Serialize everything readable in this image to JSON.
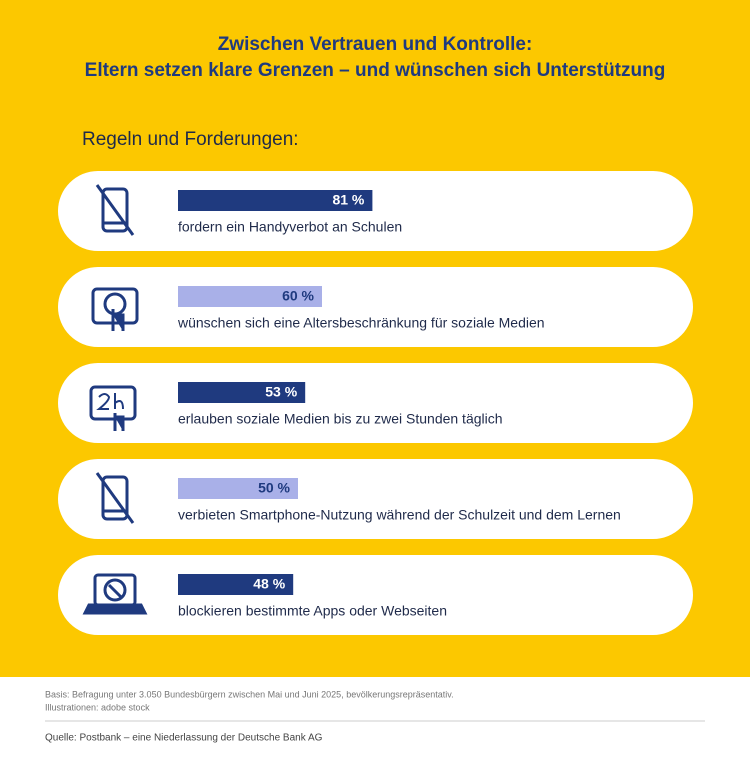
{
  "chart_data": {
    "type": "bar",
    "title": [
      "Zwischen Vertrauen und Kontrolle:",
      "Eltern setzen klare Grenzen – und wünschen sich Unterstützung"
    ],
    "subtitle": "Regeln und Forderungen:",
    "categories": [
      "fordern ein Handyverbot an Schulen",
      "wünschen sich eine Altersbeschränkung für soziale Medien",
      "erlauben soziale Medien bis zu zwei Stunden täglich",
      "verbieten Smartphone-Nutzung während der Schulzeit und dem Lernen",
      "blockieren bestimmte Apps oder Webseiten"
    ],
    "values": [
      81,
      60,
      53,
      50,
      48
    ],
    "value_labels": [
      "81 %",
      "60 %",
      "53 %",
      "50 %",
      "48 %"
    ],
    "colors": [
      "#1f3a7f",
      "#a9b0e8",
      "#1f3a7f",
      "#a9b0e8",
      "#1f3a7f"
    ],
    "xlim": [
      0,
      100
    ],
    "notes": [
      "Basis: Befragung unter 3.050 Bundesbürgern zwischen Mai und Juni 2025, bevölkerungsrepräsentativ.",
      "Illustrationen: adobe stock"
    ],
    "source": "Quelle: Postbank – eine Niederlassung der Deutsche Bank AG"
  }
}
